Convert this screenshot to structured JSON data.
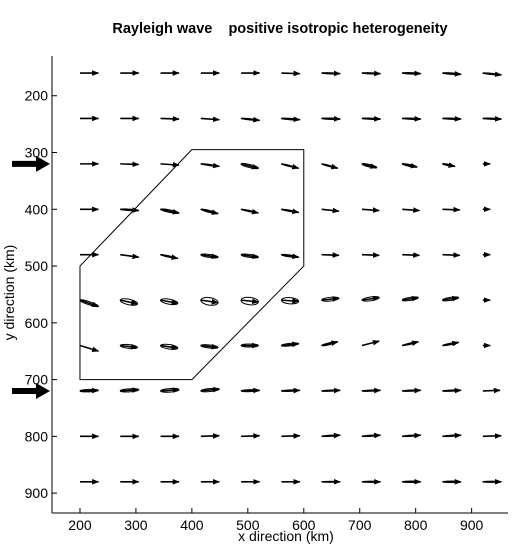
{
  "chart_data": {
    "type": "scatter",
    "title": "Rayleigh wave    positive isotropic heterogeneity",
    "xlabel": "x  direction (km)",
    "ylabel": "y  direction (km)",
    "xlim": [
      150,
      965
    ],
    "ylim": [
      130,
      935
    ],
    "y_reversed": true,
    "xticks": [
      200,
      300,
      400,
      500,
      600,
      700,
      800,
      900
    ],
    "yticks": [
      200,
      300,
      400,
      500,
      600,
      700,
      800,
      900
    ],
    "grid": false,
    "legend": "none",
    "marker_columns_x": [
      200,
      272,
      344,
      416,
      488,
      560,
      632,
      704,
      776,
      848,
      920
    ],
    "marker_rows_y": [
      160,
      240,
      320,
      400,
      480,
      560,
      640,
      720,
      800,
      880
    ],
    "heterogeneity_polygon": [
      [
        200,
        500
      ],
      [
        400,
        295
      ],
      [
        600,
        295
      ],
      [
        600,
        500
      ],
      [
        400,
        700
      ],
      [
        200,
        700
      ]
    ],
    "arrow_markers_y": [
      320,
      720
    ],
    "scale_km_per_unit": 22,
    "vector_rows": [
      {
        "y": 160,
        "vectors": [
          {
            "dx": 1.5,
            "dy": 0.0,
            "ellipse_minor": 0
          },
          {
            "dx": 1.5,
            "dy": 0.0,
            "ellipse_minor": 0
          },
          {
            "dx": 1.5,
            "dy": 0.0,
            "ellipse_minor": 0
          },
          {
            "dx": 1.5,
            "dy": 0.0,
            "ellipse_minor": 0
          },
          {
            "dx": 1.5,
            "dy": 0.0,
            "ellipse_minor": 0
          },
          {
            "dx": 1.5,
            "dy": 0.05,
            "ellipse_minor": 0
          },
          {
            "dx": 1.5,
            "dy": 0.05,
            "ellipse_minor": 0.05
          },
          {
            "dx": 1.5,
            "dy": 0.05,
            "ellipse_minor": 0.05
          },
          {
            "dx": 1.5,
            "dy": 0.05,
            "ellipse_minor": 0.06
          },
          {
            "dx": 1.5,
            "dy": 0.1,
            "ellipse_minor": 0.06
          },
          {
            "dx": 1.5,
            "dy": 0.15,
            "ellipse_minor": 0.05
          }
        ]
      },
      {
        "y": 240,
        "vectors": [
          {
            "dx": 1.5,
            "dy": 0.0,
            "ellipse_minor": 0
          },
          {
            "dx": 1.5,
            "dy": 0.0,
            "ellipse_minor": 0
          },
          {
            "dx": 1.5,
            "dy": 0.05,
            "ellipse_minor": 0
          },
          {
            "dx": 1.5,
            "dy": 0.1,
            "ellipse_minor": 0
          },
          {
            "dx": 1.5,
            "dy": 0.15,
            "ellipse_minor": 0.05
          },
          {
            "dx": 1.5,
            "dy": 0.1,
            "ellipse_minor": 0.06
          },
          {
            "dx": 1.5,
            "dy": 0.05,
            "ellipse_minor": 0.06
          },
          {
            "dx": 1.5,
            "dy": 0.05,
            "ellipse_minor": 0.05
          },
          {
            "dx": 1.5,
            "dy": 0.05,
            "ellipse_minor": 0.05
          },
          {
            "dx": 1.5,
            "dy": 0.05,
            "ellipse_minor": 0.05
          },
          {
            "dx": 1.5,
            "dy": 0.05,
            "ellipse_minor": 0.05
          }
        ]
      },
      {
        "y": 320,
        "vectors": [
          {
            "dx": 1.5,
            "dy": 0.0,
            "ellipse_minor": 0
          },
          {
            "dx": 1.5,
            "dy": 0.05,
            "ellipse_minor": 0
          },
          {
            "dx": 1.5,
            "dy": 0.1,
            "ellipse_minor": 0
          },
          {
            "dx": 1.5,
            "dy": 0.2,
            "ellipse_minor": 0.05
          },
          {
            "dx": 1.4,
            "dy": 0.35,
            "ellipse_minor": 0.12
          },
          {
            "dx": 1.4,
            "dy": 0.35,
            "ellipse_minor": 0.05
          },
          {
            "dx": 1.3,
            "dy": 0.35,
            "ellipse_minor": 0.05
          },
          {
            "dx": 1.2,
            "dy": 0.3,
            "ellipse_minor": 0.1
          },
          {
            "dx": 1.2,
            "dy": 0.25,
            "ellipse_minor": 0.08
          },
          {
            "dx": 1.0,
            "dy": 0.2,
            "ellipse_minor": 0.06
          },
          {
            "dx": 0.6,
            "dy": 0.0,
            "ellipse_minor": 0
          }
        ]
      },
      {
        "y": 400,
        "vectors": [
          {
            "dx": 1.5,
            "dy": 0.0,
            "ellipse_minor": 0
          },
          {
            "dx": 1.5,
            "dy": 0.1,
            "ellipse_minor": 0.06
          },
          {
            "dx": 1.5,
            "dy": 0.3,
            "ellipse_minor": 0.1
          },
          {
            "dx": 1.4,
            "dy": 0.35,
            "ellipse_minor": 0.08
          },
          {
            "dx": 1.4,
            "dy": 0.3,
            "ellipse_minor": 0.05
          },
          {
            "dx": 1.4,
            "dy": 0.25,
            "ellipse_minor": 0.05
          },
          {
            "dx": 1.4,
            "dy": 0.15,
            "ellipse_minor": 0
          },
          {
            "dx": 1.4,
            "dy": 0.1,
            "ellipse_minor": 0
          },
          {
            "dx": 1.4,
            "dy": 0.1,
            "ellipse_minor": 0
          },
          {
            "dx": 1.4,
            "dy": 0.05,
            "ellipse_minor": 0
          },
          {
            "dx": 0.6,
            "dy": 0.0,
            "ellipse_minor": 0
          }
        ]
      },
      {
        "y": 480,
        "vectors": [
          {
            "dx": 1.5,
            "dy": 0.0,
            "ellipse_minor": 0
          },
          {
            "dx": 1.5,
            "dy": 0.2,
            "ellipse_minor": 0
          },
          {
            "dx": 1.4,
            "dy": 0.3,
            "ellipse_minor": 0.06
          },
          {
            "dx": 1.4,
            "dy": 0.2,
            "ellipse_minor": 0.12
          },
          {
            "dx": 1.4,
            "dy": 0.2,
            "ellipse_minor": 0.12
          },
          {
            "dx": 1.4,
            "dy": 0.2,
            "ellipse_minor": 0.08
          },
          {
            "dx": 1.4,
            "dy": 0.05,
            "ellipse_minor": 0
          },
          {
            "dx": 1.4,
            "dy": 0.05,
            "ellipse_minor": 0
          },
          {
            "dx": 1.4,
            "dy": 0.05,
            "ellipse_minor": 0
          },
          {
            "dx": 1.4,
            "dy": 0.05,
            "ellipse_minor": 0
          },
          {
            "dx": 0.6,
            "dy": 0.0,
            "ellipse_minor": 0
          }
        ]
      },
      {
        "y": 560,
        "vectors": [
          {
            "dx": 1.5,
            "dy": 0.5,
            "ellipse_minor": 0.12
          },
          {
            "dx": 1.4,
            "dy": 0.3,
            "ellipse_minor": 0.22
          },
          {
            "dx": 1.4,
            "dy": 0.25,
            "ellipse_minor": 0.2
          },
          {
            "dx": 1.4,
            "dy": 0.2,
            "ellipse_minor": 0.3
          },
          {
            "dx": 1.4,
            "dy": 0.15,
            "ellipse_minor": 0.3
          },
          {
            "dx": 1.4,
            "dy": 0.1,
            "ellipse_minor": 0.25
          },
          {
            "dx": 1.4,
            "dy": -0.15,
            "ellipse_minor": 0.15
          },
          {
            "dx": 1.4,
            "dy": -0.2,
            "ellipse_minor": 0.15
          },
          {
            "dx": 1.3,
            "dy": -0.2,
            "ellipse_minor": 0.12
          },
          {
            "dx": 1.3,
            "dy": -0.2,
            "ellipse_minor": 0.12
          },
          {
            "dx": 0.6,
            "dy": 0.0,
            "ellipse_minor": 0
          }
        ]
      },
      {
        "y": 640,
        "vectors": [
          {
            "dx": 1.5,
            "dy": 0.45,
            "ellipse_minor": 0
          },
          {
            "dx": 1.4,
            "dy": 0.15,
            "ellipse_minor": 0.15
          },
          {
            "dx": 1.4,
            "dy": 0.2,
            "ellipse_minor": 0.18
          },
          {
            "dx": 1.4,
            "dy": 0.15,
            "ellipse_minor": 0.12
          },
          {
            "dx": 1.4,
            "dy": 0.0,
            "ellipse_minor": 0.12
          },
          {
            "dx": 1.4,
            "dy": -0.15,
            "ellipse_minor": 0.1
          },
          {
            "dx": 1.3,
            "dy": -0.3,
            "ellipse_minor": 0.08
          },
          {
            "dx": 1.4,
            "dy": -0.35,
            "ellipse_minor": 0
          },
          {
            "dx": 1.3,
            "dy": -0.3,
            "ellipse_minor": 0.06
          },
          {
            "dx": 1.3,
            "dy": -0.25,
            "ellipse_minor": 0.06
          },
          {
            "dx": 0.6,
            "dy": 0.0,
            "ellipse_minor": 0
          }
        ]
      },
      {
        "y": 720,
        "vectors": [
          {
            "dx": 1.5,
            "dy": -0.05,
            "ellipse_minor": 0.1
          },
          {
            "dx": 1.5,
            "dy": -0.1,
            "ellipse_minor": 0.12
          },
          {
            "dx": 1.5,
            "dy": -0.1,
            "ellipse_minor": 0.14
          },
          {
            "dx": 1.5,
            "dy": -0.15,
            "ellipse_minor": 0.12
          },
          {
            "dx": 1.5,
            "dy": -0.05,
            "ellipse_minor": 0.08
          },
          {
            "dx": 1.5,
            "dy": -0.05,
            "ellipse_minor": 0.06
          },
          {
            "dx": 1.5,
            "dy": -0.05,
            "ellipse_minor": 0.05
          },
          {
            "dx": 1.5,
            "dy": -0.05,
            "ellipse_minor": 0.05
          },
          {
            "dx": 1.5,
            "dy": -0.05,
            "ellipse_minor": 0.05
          },
          {
            "dx": 1.5,
            "dy": -0.05,
            "ellipse_minor": 0.05
          },
          {
            "dx": 1.4,
            "dy": -0.05,
            "ellipse_minor": 0
          }
        ]
      },
      {
        "y": 800,
        "vectors": [
          {
            "dx": 1.5,
            "dy": 0.0,
            "ellipse_minor": 0
          },
          {
            "dx": 1.5,
            "dy": 0.0,
            "ellipse_minor": 0
          },
          {
            "dx": 1.5,
            "dy": 0.0,
            "ellipse_minor": 0
          },
          {
            "dx": 1.5,
            "dy": -0.05,
            "ellipse_minor": 0
          },
          {
            "dx": 1.5,
            "dy": -0.05,
            "ellipse_minor": 0
          },
          {
            "dx": 1.5,
            "dy": -0.05,
            "ellipse_minor": 0
          },
          {
            "dx": 1.5,
            "dy": -0.1,
            "ellipse_minor": 0.05
          },
          {
            "dx": 1.5,
            "dy": -0.1,
            "ellipse_minor": 0.05
          },
          {
            "dx": 1.5,
            "dy": -0.1,
            "ellipse_minor": 0.05
          },
          {
            "dx": 1.5,
            "dy": -0.1,
            "ellipse_minor": 0.05
          },
          {
            "dx": 1.5,
            "dy": -0.05,
            "ellipse_minor": 0
          }
        ]
      },
      {
        "y": 880,
        "vectors": [
          {
            "dx": 1.5,
            "dy": 0.0,
            "ellipse_minor": 0
          },
          {
            "dx": 1.5,
            "dy": 0.0,
            "ellipse_minor": 0
          },
          {
            "dx": 1.5,
            "dy": 0.0,
            "ellipse_minor": 0
          },
          {
            "dx": 1.5,
            "dy": 0.0,
            "ellipse_minor": 0
          },
          {
            "dx": 1.5,
            "dy": 0.0,
            "ellipse_minor": 0
          },
          {
            "dx": 1.5,
            "dy": 0.0,
            "ellipse_minor": 0
          },
          {
            "dx": 1.5,
            "dy": 0.0,
            "ellipse_minor": 0.04
          },
          {
            "dx": 1.5,
            "dy": 0.0,
            "ellipse_minor": 0.05
          },
          {
            "dx": 1.5,
            "dy": 0.0,
            "ellipse_minor": 0.06
          },
          {
            "dx": 1.5,
            "dy": 0.0,
            "ellipse_minor": 0.06
          },
          {
            "dx": 1.5,
            "dy": 0.0,
            "ellipse_minor": 0.05
          }
        ]
      }
    ]
  }
}
